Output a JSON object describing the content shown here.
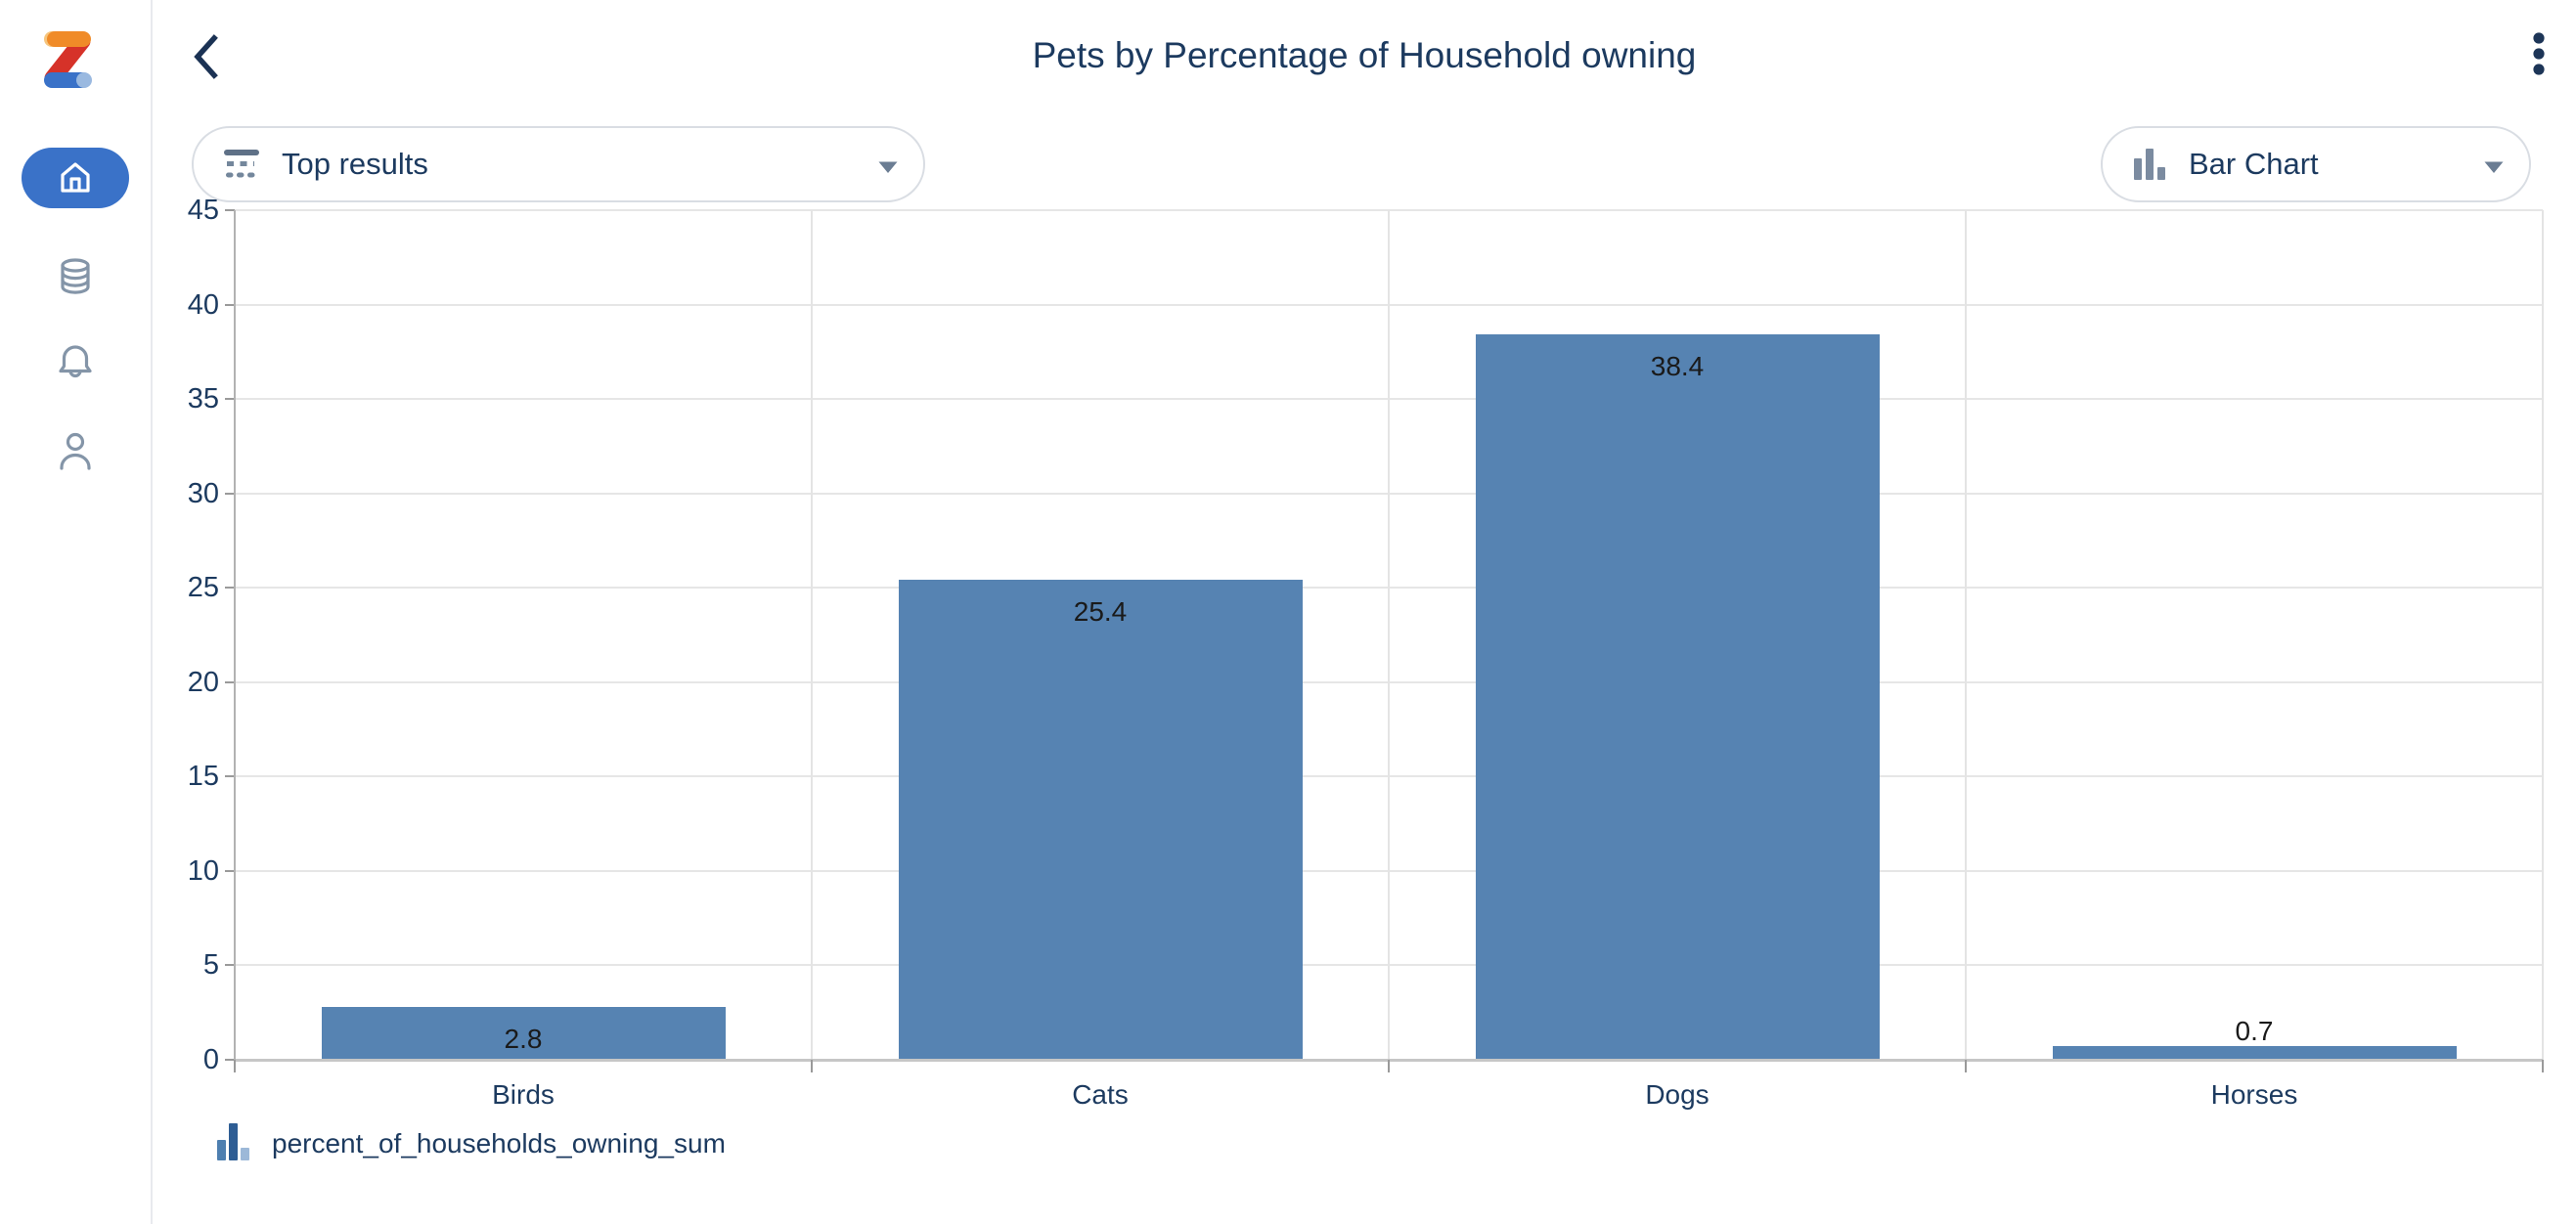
{
  "header": {
    "title": "Pets by Percentage of Household owning"
  },
  "controls": {
    "results_dropdown_label": "Top results",
    "chart_type_dropdown_label": "Bar Chart"
  },
  "chart_data": {
    "type": "bar",
    "title": "Pets by Percentage of Household owning",
    "categories": [
      "Birds",
      "Cats",
      "Dogs",
      "Horses"
    ],
    "values": [
      2.8,
      25.4,
      38.4,
      0.7
    ],
    "series": [
      {
        "name": "percent_of_households_owning_sum",
        "values": [
          2.8,
          25.4,
          38.4,
          0.7
        ]
      }
    ],
    "xlabel": "",
    "ylabel": "",
    "ylim": [
      0,
      45
    ],
    "ytick_step": 5,
    "yticks": [
      0,
      5,
      10,
      15,
      20,
      25,
      30,
      35,
      40,
      45
    ],
    "grid": true,
    "bar_color": "#5683b2",
    "value_label_color": "#1a1a1a",
    "legend": [
      "percent_of_households_owning_sum"
    ],
    "legend_position": "bottom-left"
  },
  "legend": {
    "label": "percent_of_households_owning_sum"
  },
  "icons": {
    "sidebar": [
      "zing-logo",
      "home-icon",
      "database-icon",
      "bell-icon",
      "person-icon"
    ],
    "header": [
      "chevron-left-icon",
      "kebab-menu-icon"
    ],
    "controls": [
      "filter-icon",
      "bar-chart-icon",
      "chevron-down-icon"
    ],
    "legend": [
      "legend-bar-chart-icon"
    ]
  },
  "colors": {
    "accent_blue": "#3a72c8",
    "navy_text": "#1c3a5f",
    "bar_blue": "#5683b2",
    "pill_border": "#d9dde3",
    "control_icon_gray": "#74879c",
    "sidebar_icon_gray": "#8495a8",
    "logo_red": "#d63229",
    "logo_orange": "#f08b28",
    "logo_light_orange": "#f6c57d",
    "logo_blue": "#3a72c8",
    "logo_light_blue": "#9ab9e0"
  }
}
